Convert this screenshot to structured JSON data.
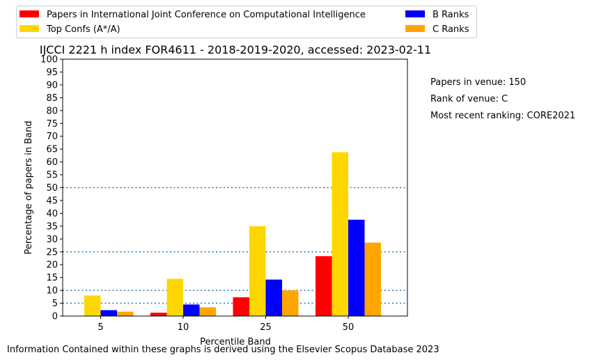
{
  "chart_data": {
    "type": "bar",
    "title": "IJCCI 2221 h index FOR4611 - 2018-2019-2020, accessed: 2023-02-11",
    "xlabel": "Percentile Band",
    "ylabel": "Percentage of papers in Band",
    "categories": [
      "5",
      "10",
      "25",
      "50"
    ],
    "ylim": [
      0,
      100
    ],
    "yticks": [
      0,
      5,
      10,
      15,
      20,
      25,
      30,
      35,
      40,
      45,
      50,
      55,
      60,
      65,
      70,
      75,
      80,
      85,
      90,
      95,
      100
    ],
    "reference_lines": [
      5,
      10,
      25,
      50
    ],
    "reference_line_color": "#1f77b4",
    "legend_position": "top",
    "series": [
      {
        "name": "Papers in International Joint Conference on Computational Intelligence",
        "color": "#ff0000",
        "values": [
          0,
          1.3,
          7.3,
          23.3
        ]
      },
      {
        "name": "Top Confs (A*/A)",
        "color": "#ffd700",
        "values": [
          8.0,
          14.5,
          35.0,
          63.8
        ]
      },
      {
        "name": "B Ranks",
        "color": "#0000ff",
        "values": [
          2.3,
          4.5,
          14.2,
          37.5
        ]
      },
      {
        "name": "C Ranks",
        "color": "#ffa500",
        "values": [
          1.7,
          3.4,
          10.0,
          28.6
        ]
      }
    ]
  },
  "side_info": {
    "papers_in_venue": "Papers in venue: 150",
    "rank_of_venue": "Rank of venue: C",
    "most_recent_ranking": "Most recent ranking: CORE2021"
  },
  "footer": "Information Contained within these graphs is derived using the Elsevier Scopus Database 2023"
}
